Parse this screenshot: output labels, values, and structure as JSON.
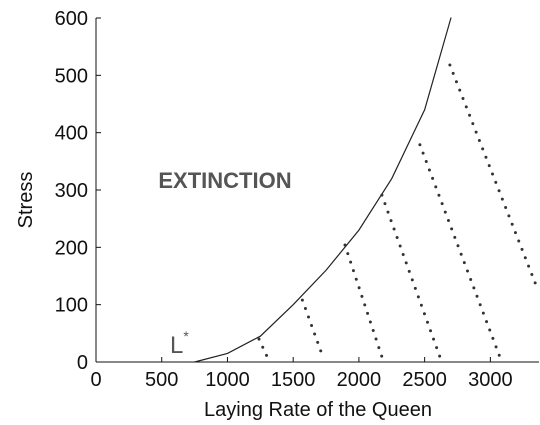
{
  "chart_data": {
    "type": "line",
    "xlabel": "Laying Rate of the Queen",
    "ylabel": "Stress",
    "xlim": [
      0,
      3370
    ],
    "ylim": [
      0,
      600
    ],
    "xticks": [
      0,
      500,
      1000,
      1500,
      2000,
      2500,
      3000
    ],
    "yticks": [
      0,
      100,
      200,
      300,
      400,
      500,
      600
    ],
    "annotations": [
      {
        "text": "EXTINCTION"
      },
      {
        "text": "L",
        "sup": "*"
      }
    ],
    "series": [
      {
        "color": "#222222",
        "style": "solid",
        "x": [
          750,
          1000,
          1250,
          1500,
          1750,
          2000,
          2250,
          2500,
          2700
        ],
        "values": [
          0,
          15,
          45,
          100,
          160,
          230,
          320,
          440,
          600
        ]
      },
      {
        "color": "#333333",
        "style": "dotted",
        "x": [
          1240,
          1310
        ],
        "values": [
          40,
          5
        ]
      },
      {
        "color": "#333333",
        "style": "dotted",
        "x": [
          1570,
          1726
        ],
        "values": [
          108,
          9
        ]
      },
      {
        "color": "#333333",
        "style": "dotted",
        "x": [
          1894,
          2175
        ],
        "values": [
          204,
          9
        ]
      },
      {
        "color": "#333333",
        "style": "dotted",
        "x": [
          2175,
          2616
        ],
        "values": [
          291,
          9
        ]
      },
      {
        "color": "#333333",
        "style": "dotted",
        "x": [
          2464,
          3072
        ],
        "values": [
          379,
          9
        ]
      },
      {
        "color": "#333333",
        "style": "dotted",
        "x": [
          2692,
          3361
        ],
        "values": [
          518,
          126
        ]
      }
    ]
  }
}
